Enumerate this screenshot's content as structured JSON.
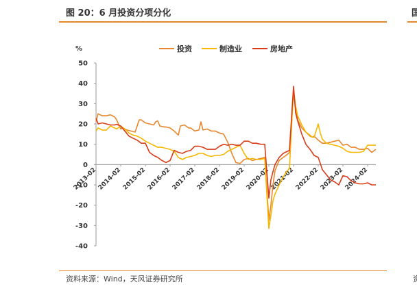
{
  "figure": {
    "title": "图 20：6 月投资分项分化",
    "title_right_fragment": "国",
    "source": "资料来源：Wind，天风证券研究所",
    "source_right_fragment": "资",
    "accent_color": "#e8862c"
  },
  "chart_data": {
    "type": "line",
    "ylabel": "%",
    "ylim": [
      -40,
      50
    ],
    "yticks": [
      -40,
      -30,
      -20,
      -10,
      0,
      10,
      20,
      30,
      40,
      50
    ],
    "x_range": [
      "2013-02",
      "2024-06"
    ],
    "xticks": [
      "2013-02",
      "2014-02",
      "2015-02",
      "2016-02",
      "2017-02",
      "2018-02",
      "2019-02",
      "2020-02",
      "2021-02",
      "2022-02",
      "2023-02",
      "2024-02"
    ],
    "legend_position": "top-center",
    "grid": false,
    "series": [
      {
        "name": "投资",
        "color": "#e8862c",
        "points": [
          [
            "2013-02",
            21.2
          ],
          [
            "2013-03",
            25.0
          ],
          [
            "2013-05",
            24.0
          ],
          [
            "2013-07",
            24.0
          ],
          [
            "2013-09",
            24.5
          ],
          [
            "2013-11",
            23.5
          ],
          [
            "2013-12",
            22.0
          ],
          [
            "2014-02",
            17.5
          ],
          [
            "2014-03",
            18.0
          ],
          [
            "2014-05",
            17.0
          ],
          [
            "2014-07",
            16.5
          ],
          [
            "2014-09",
            16.0
          ],
          [
            "2014-10",
            19.0
          ],
          [
            "2014-11",
            22.0
          ],
          [
            "2014-12",
            22.0
          ],
          [
            "2015-02",
            20.5
          ],
          [
            "2015-04",
            20.0
          ],
          [
            "2015-06",
            19.5
          ],
          [
            "2015-07",
            21.0
          ],
          [
            "2015-08",
            21.5
          ],
          [
            "2015-09",
            19.0
          ],
          [
            "2015-11",
            18.5
          ],
          [
            "2015-12",
            18.5
          ],
          [
            "2016-02",
            18.0
          ],
          [
            "2016-04",
            16.5
          ],
          [
            "2016-06",
            14.5
          ],
          [
            "2016-07",
            19.0
          ],
          [
            "2016-09",
            19.5
          ],
          [
            "2016-11",
            18.0
          ],
          [
            "2016-12",
            18.0
          ],
          [
            "2017-02",
            16.5
          ],
          [
            "2017-04",
            17.0
          ],
          [
            "2017-05",
            21.0
          ],
          [
            "2017-06",
            17.0
          ],
          [
            "2017-08",
            17.5
          ],
          [
            "2017-10",
            16.5
          ],
          [
            "2017-12",
            16.5
          ],
          [
            "2018-02",
            15.5
          ],
          [
            "2018-04",
            15.0
          ],
          [
            "2018-06",
            11.0
          ],
          [
            "2018-08",
            5.5
          ],
          [
            "2018-10",
            1.0
          ],
          [
            "2018-12",
            0.5
          ],
          [
            "2019-02",
            2.5
          ],
          [
            "2019-04",
            3.0
          ],
          [
            "2019-06",
            2.0
          ],
          [
            "2019-08",
            2.5
          ],
          [
            "2019-10",
            3.0
          ],
          [
            "2019-12",
            3.5
          ],
          [
            "2020-02",
            -27.5
          ],
          [
            "2020-03",
            -20.0
          ],
          [
            "2020-04",
            -10.0
          ],
          [
            "2020-05",
            -3.0
          ],
          [
            "2020-07",
            2.0
          ],
          [
            "2020-09",
            3.5
          ],
          [
            "2020-11",
            5.0
          ],
          [
            "2020-12",
            6.0
          ],
          [
            "2021-02",
            35.0
          ],
          [
            "2021-03",
            28.0
          ],
          [
            "2021-04",
            22.0
          ],
          [
            "2021-06",
            18.0
          ],
          [
            "2021-08",
            16.0
          ],
          [
            "2021-10",
            14.0
          ],
          [
            "2021-11",
            13.5
          ],
          [
            "2021-12",
            14.0
          ],
          [
            "2022-02",
            12.0
          ],
          [
            "2022-04",
            10.5
          ],
          [
            "2022-06",
            10.5
          ],
          [
            "2022-08",
            11.0
          ],
          [
            "2022-10",
            11.5
          ],
          [
            "2022-12",
            12.0
          ],
          [
            "2023-02",
            9.5
          ],
          [
            "2023-04",
            10.0
          ],
          [
            "2023-06",
            8.5
          ],
          [
            "2023-08",
            8.5
          ],
          [
            "2023-10",
            7.5
          ],
          [
            "2023-12",
            7.5
          ],
          [
            "2024-02",
            8.0
          ],
          [
            "2024-04",
            6.0
          ],
          [
            "2024-06",
            7.5
          ]
        ]
      },
      {
        "name": "制造业",
        "color": "#f5b700",
        "points": [
          [
            "2013-02",
            16.5
          ],
          [
            "2013-03",
            18.0
          ],
          [
            "2013-05",
            17.0
          ],
          [
            "2013-07",
            17.0
          ],
          [
            "2013-09",
            19.0
          ],
          [
            "2013-11",
            18.0
          ],
          [
            "2013-12",
            17.5
          ],
          [
            "2014-02",
            19.0
          ],
          [
            "2014-04",
            17.5
          ],
          [
            "2014-06",
            15.5
          ],
          [
            "2014-08",
            14.5
          ],
          [
            "2014-10",
            14.0
          ],
          [
            "2014-12",
            13.0
          ],
          [
            "2015-02",
            11.5
          ],
          [
            "2015-04",
            10.5
          ],
          [
            "2015-06",
            9.5
          ],
          [
            "2015-08",
            8.5
          ],
          [
            "2015-10",
            8.5
          ],
          [
            "2015-12",
            8.0
          ],
          [
            "2016-02",
            7.5
          ],
          [
            "2016-04",
            6.5
          ],
          [
            "2016-06",
            3.5
          ],
          [
            "2016-08",
            2.5
          ],
          [
            "2016-10",
            3.5
          ],
          [
            "2016-12",
            4.0
          ],
          [
            "2017-02",
            4.5
          ],
          [
            "2017-04",
            5.5
          ],
          [
            "2017-06",
            5.5
          ],
          [
            "2017-08",
            4.5
          ],
          [
            "2017-10",
            4.0
          ],
          [
            "2017-12",
            4.5
          ],
          [
            "2018-02",
            4.5
          ],
          [
            "2018-04",
            5.0
          ],
          [
            "2018-06",
            6.5
          ],
          [
            "2018-08",
            7.5
          ],
          [
            "2018-10",
            8.5
          ],
          [
            "2018-12",
            9.5
          ],
          [
            "2019-02",
            5.5
          ],
          [
            "2019-04",
            2.5
          ],
          [
            "2019-06",
            3.0
          ],
          [
            "2019-08",
            2.5
          ],
          [
            "2019-10",
            2.5
          ],
          [
            "2019-12",
            3.0
          ],
          [
            "2020-02",
            -31.5
          ],
          [
            "2020-03",
            -25.0
          ],
          [
            "2020-04",
            -18.0
          ],
          [
            "2020-05",
            -14.5
          ],
          [
            "2020-07",
            -10.0
          ],
          [
            "2020-09",
            -6.0
          ],
          [
            "2020-11",
            -3.0
          ],
          [
            "2020-12",
            -2.0
          ],
          [
            "2021-02",
            37.0
          ],
          [
            "2021-03",
            29.0
          ],
          [
            "2021-04",
            24.0
          ],
          [
            "2021-06",
            19.5
          ],
          [
            "2021-08",
            16.0
          ],
          [
            "2021-10",
            14.5
          ],
          [
            "2021-11",
            13.5
          ],
          [
            "2021-12",
            13.5
          ],
          [
            "2022-02",
            20.0
          ],
          [
            "2022-03",
            15.5
          ],
          [
            "2022-04",
            12.5
          ],
          [
            "2022-06",
            10.5
          ],
          [
            "2022-08",
            10.0
          ],
          [
            "2022-10",
            9.5
          ],
          [
            "2022-12",
            9.0
          ],
          [
            "2023-02",
            8.0
          ],
          [
            "2023-04",
            6.5
          ],
          [
            "2023-06",
            6.0
          ],
          [
            "2023-08",
            6.0
          ],
          [
            "2023-10",
            6.0
          ],
          [
            "2023-12",
            6.5
          ],
          [
            "2024-02",
            9.5
          ],
          [
            "2024-04",
            9.5
          ],
          [
            "2024-06",
            9.5
          ]
        ]
      },
      {
        "name": "房地产",
        "color": "#d93b18",
        "points": [
          [
            "2013-02",
            22.8
          ],
          [
            "2013-03",
            20.0
          ],
          [
            "2013-05",
            20.5
          ],
          [
            "2013-07",
            20.0
          ],
          [
            "2013-09",
            19.5
          ],
          [
            "2013-11",
            19.5
          ],
          [
            "2013-12",
            19.8
          ],
          [
            "2014-02",
            19.0
          ],
          [
            "2014-04",
            16.5
          ],
          [
            "2014-06",
            14.0
          ],
          [
            "2014-08",
            13.0
          ],
          [
            "2014-10",
            12.0
          ],
          [
            "2014-12",
            10.5
          ],
          [
            "2015-02",
            10.5
          ],
          [
            "2015-04",
            6.0
          ],
          [
            "2015-06",
            4.5
          ],
          [
            "2015-08",
            3.5
          ],
          [
            "2015-10",
            2.0
          ],
          [
            "2015-12",
            1.0
          ],
          [
            "2016-02",
            2.0
          ],
          [
            "2016-04",
            7.0
          ],
          [
            "2016-06",
            6.0
          ],
          [
            "2016-08",
            5.5
          ],
          [
            "2016-10",
            6.5
          ],
          [
            "2016-12",
            7.0
          ],
          [
            "2017-02",
            9.0
          ],
          [
            "2017-04",
            9.0
          ],
          [
            "2017-06",
            8.5
          ],
          [
            "2017-08",
            7.5
          ],
          [
            "2017-10",
            7.5
          ],
          [
            "2017-12",
            7.5
          ],
          [
            "2018-02",
            9.0
          ],
          [
            "2018-04",
            10.0
          ],
          [
            "2018-06",
            9.5
          ],
          [
            "2018-08",
            10.0
          ],
          [
            "2018-10",
            9.5
          ],
          [
            "2018-12",
            9.5
          ],
          [
            "2019-02",
            11.5
          ],
          [
            "2019-04",
            11.5
          ],
          [
            "2019-06",
            10.5
          ],
          [
            "2019-08",
            10.5
          ],
          [
            "2019-10",
            10.0
          ],
          [
            "2019-12",
            10.0
          ],
          [
            "2020-02",
            -16.5
          ],
          [
            "2020-03",
            -7.5
          ],
          [
            "2020-04",
            -3.5
          ],
          [
            "2020-05",
            0.0
          ],
          [
            "2020-07",
            3.5
          ],
          [
            "2020-09",
            5.5
          ],
          [
            "2020-11",
            6.5
          ],
          [
            "2020-12",
            7.0
          ],
          [
            "2021-02",
            38.5
          ],
          [
            "2021-03",
            25.5
          ],
          [
            "2021-04",
            21.5
          ],
          [
            "2021-06",
            15.0
          ],
          [
            "2021-08",
            10.0
          ],
          [
            "2021-10",
            7.5
          ],
          [
            "2021-11",
            6.0
          ],
          [
            "2021-12",
            4.5
          ],
          [
            "2022-02",
            3.5
          ],
          [
            "2022-03",
            0.5
          ],
          [
            "2022-04",
            -2.5
          ],
          [
            "2022-06",
            -5.0
          ],
          [
            "2022-08",
            -7.5
          ],
          [
            "2022-10",
            -8.5
          ],
          [
            "2022-12",
            -10.0
          ],
          [
            "2023-02",
            -5.5
          ],
          [
            "2023-04",
            -6.0
          ],
          [
            "2023-06",
            -8.0
          ],
          [
            "2023-08",
            -9.0
          ],
          [
            "2023-10",
            -9.5
          ],
          [
            "2023-12",
            -9.5
          ],
          [
            "2024-02",
            -9.0
          ],
          [
            "2024-04",
            -10.0
          ],
          [
            "2024-06",
            -10.0
          ]
        ]
      }
    ]
  }
}
